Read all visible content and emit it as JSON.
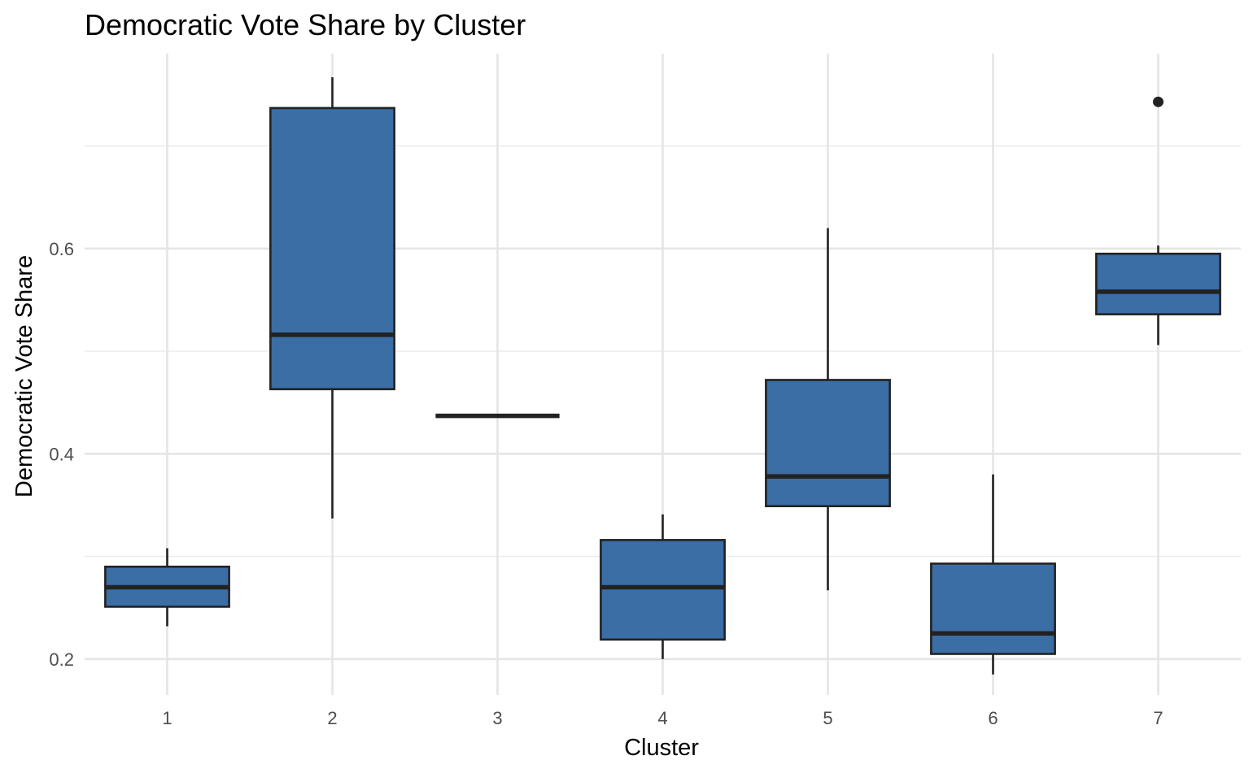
{
  "chart_data": {
    "type": "boxplot",
    "title": "Democratic Vote Share by Cluster",
    "xlabel": "Cluster",
    "ylabel": "Democratic Vote Share",
    "categories": [
      "1",
      "2",
      "3",
      "4",
      "5",
      "6",
      "7"
    ],
    "yticks": [
      0.2,
      0.4,
      0.6
    ],
    "ytick_labels": [
      "0.2",
      "0.4",
      "0.6"
    ],
    "ylim": [
      0.165,
      0.79
    ],
    "grid": true,
    "fill_color": "#3a6ea5",
    "line_color": "#222222",
    "boxes": [
      {
        "cluster": "1",
        "whisker_low": 0.232,
        "q1": 0.251,
        "median": 0.27,
        "q3": 0.29,
        "whisker_high": 0.308,
        "outliers": []
      },
      {
        "cluster": "2",
        "whisker_low": 0.337,
        "q1": 0.463,
        "median": 0.516,
        "q3": 0.737,
        "whisker_high": 0.767,
        "outliers": []
      },
      {
        "cluster": "3",
        "whisker_low": 0.437,
        "q1": 0.437,
        "median": 0.437,
        "q3": 0.437,
        "whisker_high": 0.437,
        "outliers": []
      },
      {
        "cluster": "4",
        "whisker_low": 0.2,
        "q1": 0.219,
        "median": 0.27,
        "q3": 0.316,
        "whisker_high": 0.341,
        "outliers": []
      },
      {
        "cluster": "5",
        "whisker_low": 0.267,
        "q1": 0.349,
        "median": 0.378,
        "q3": 0.472,
        "whisker_high": 0.62,
        "outliers": []
      },
      {
        "cluster": "6",
        "whisker_low": 0.185,
        "q1": 0.205,
        "median": 0.225,
        "q3": 0.293,
        "whisker_high": 0.38,
        "outliers": []
      },
      {
        "cluster": "7",
        "whisker_low": 0.506,
        "q1": 0.536,
        "median": 0.558,
        "q3": 0.595,
        "whisker_high": 0.603,
        "outliers": [
          0.743
        ]
      }
    ]
  }
}
